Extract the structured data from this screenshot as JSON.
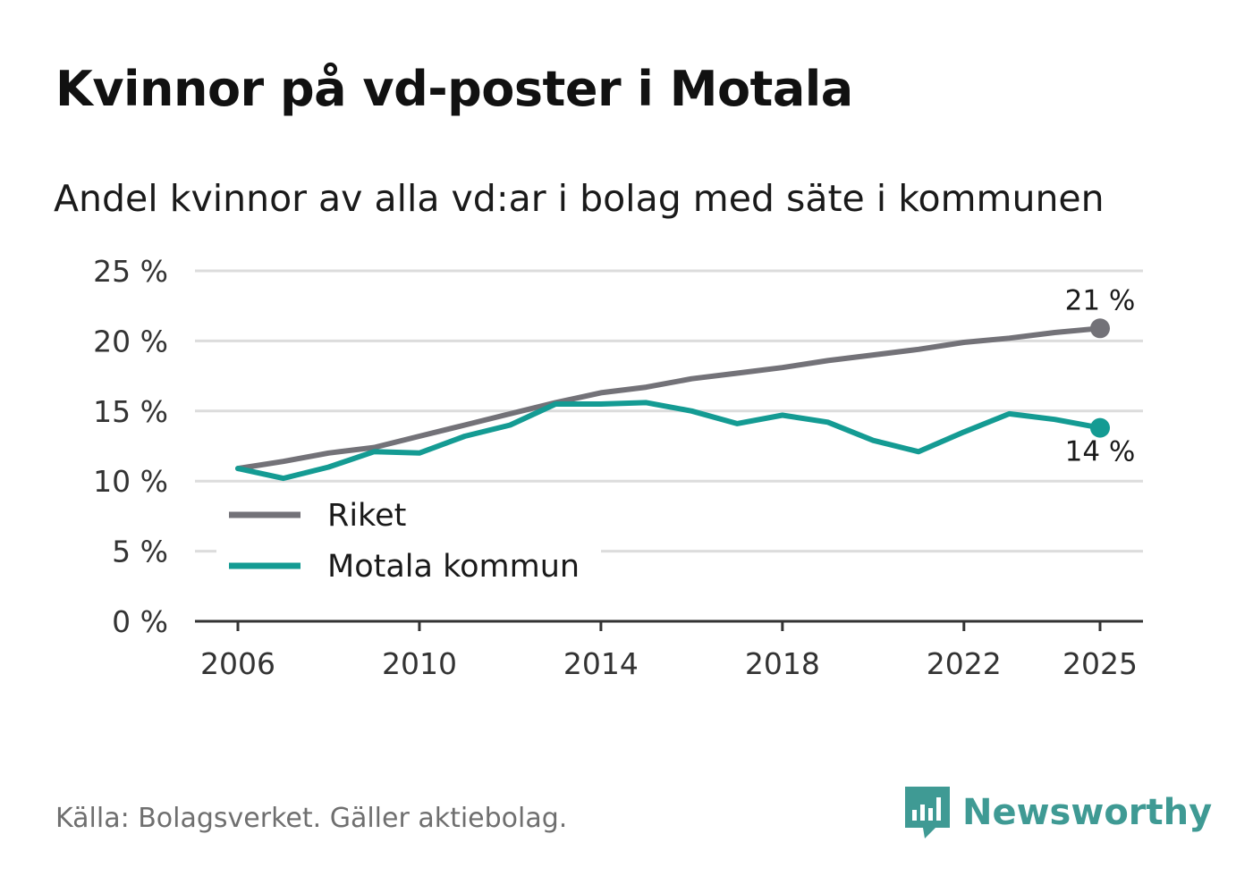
{
  "header": {
    "title": "Kvinnor på vd-poster i Motala",
    "subtitle": "Andel kvinnor av alla vd:ar i bolag med säte i kommunen"
  },
  "footer": {
    "source": "Källa: Bolagsverket. Gäller aktiebolag.",
    "brand": "Newsworthy"
  },
  "colors": {
    "riket": "#737278",
    "motala": "#149b93",
    "grid": "#dcdcdc",
    "axis": "#333333",
    "brand": "#3f9a94"
  },
  "chart_data": {
    "type": "line",
    "title": "Kvinnor på vd-poster i Motala",
    "subtitle": "Andel kvinnor av alla vd:ar i bolag med säte i kommunen",
    "xlabel": "",
    "ylabel": "",
    "x": [
      2006,
      2007,
      2008,
      2009,
      2010,
      2011,
      2012,
      2013,
      2014,
      2015,
      2016,
      2017,
      2018,
      2019,
      2020,
      2021,
      2022,
      2023,
      2024,
      2025
    ],
    "xlim": [
      2006,
      2025
    ],
    "ylim": [
      0,
      25
    ],
    "x_ticks": [
      2006,
      2010,
      2014,
      2018,
      2022,
      2025
    ],
    "y_ticks": [
      0,
      5,
      10,
      15,
      20,
      25
    ],
    "y_tick_labels": [
      "0 %",
      "5 %",
      "10 %",
      "15 %",
      "20 %",
      "25 %"
    ],
    "grid": true,
    "legend_position": "bottom-left",
    "series": [
      {
        "name": "Riket",
        "color": "#737278",
        "values": [
          10.9,
          11.4,
          12.0,
          12.4,
          13.2,
          14.0,
          14.8,
          15.6,
          16.3,
          16.7,
          17.3,
          17.7,
          18.1,
          18.6,
          19.0,
          19.4,
          19.9,
          20.2,
          20.6,
          20.9
        ],
        "end_label": "21 %",
        "end_label_position": "above"
      },
      {
        "name": "Motala kommun",
        "color": "#149b93",
        "values": [
          10.9,
          10.2,
          11.0,
          12.1,
          12.0,
          13.2,
          14.0,
          15.5,
          15.5,
          15.6,
          15.0,
          14.1,
          14.7,
          14.2,
          12.9,
          12.1,
          13.5,
          14.8,
          14.4,
          13.8
        ],
        "end_label": "14 %",
        "end_label_position": "below"
      }
    ]
  }
}
